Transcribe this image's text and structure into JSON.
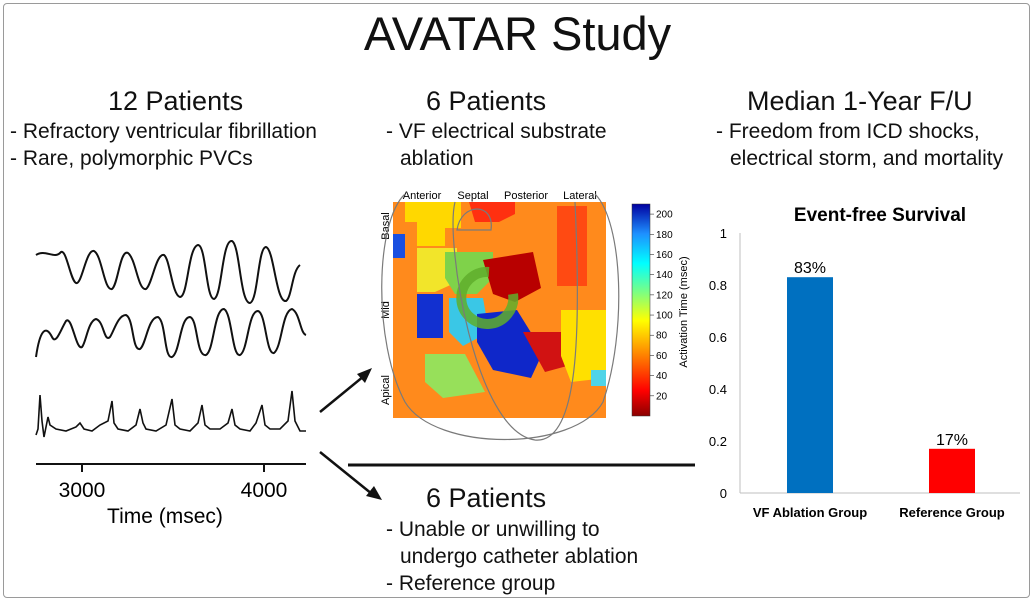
{
  "title": "AVATAR Study",
  "left": {
    "heading": "12 Patients",
    "bullets": [
      "- Refractory ventricular fibrillation",
      "- Rare, polymorphic PVCs"
    ],
    "ecg_axis": {
      "ticks": [
        "3000",
        "4000"
      ],
      "label": "Time (msec)"
    }
  },
  "middle_top": {
    "heading": "6 Patients",
    "bullets": [
      "- VF electrical substrate",
      "ablation"
    ],
    "map": {
      "columns": [
        "Anterior",
        "Septal",
        "Posterior",
        "Lateral"
      ],
      "rows": [
        "Basal",
        "Mid",
        "Apical"
      ],
      "colorbar_label": "Activation Time (msec)",
      "colorbar_ticks": [
        "200",
        "180",
        "160",
        "140",
        "120",
        "100",
        "80",
        "60",
        "40",
        "20"
      ],
      "colorbar_range": [
        0,
        210
      ]
    }
  },
  "middle_bottom": {
    "heading": "6 Patients",
    "bullets": [
      "- Unable or unwilling to",
      "undergo catheter ablation",
      "- Reference group"
    ]
  },
  "right": {
    "heading": "Median 1-Year F/U",
    "bullets": [
      "- Freedom from ICD shocks,",
      "electrical storm, and mortality"
    ]
  },
  "chart_data": {
    "type": "bar",
    "title": "Event-free Survival",
    "categories": [
      "VF Ablation Group",
      "Reference Group"
    ],
    "values": [
      0.83,
      0.17
    ],
    "data_labels": [
      "83%",
      "17%"
    ],
    "colors": [
      "#0070c0",
      "#ff0000"
    ],
    "ylim": [
      0,
      1
    ],
    "yticks": [
      "0",
      "0.2",
      "0.4",
      "0.6",
      "0.8",
      "1"
    ],
    "grid": false
  }
}
